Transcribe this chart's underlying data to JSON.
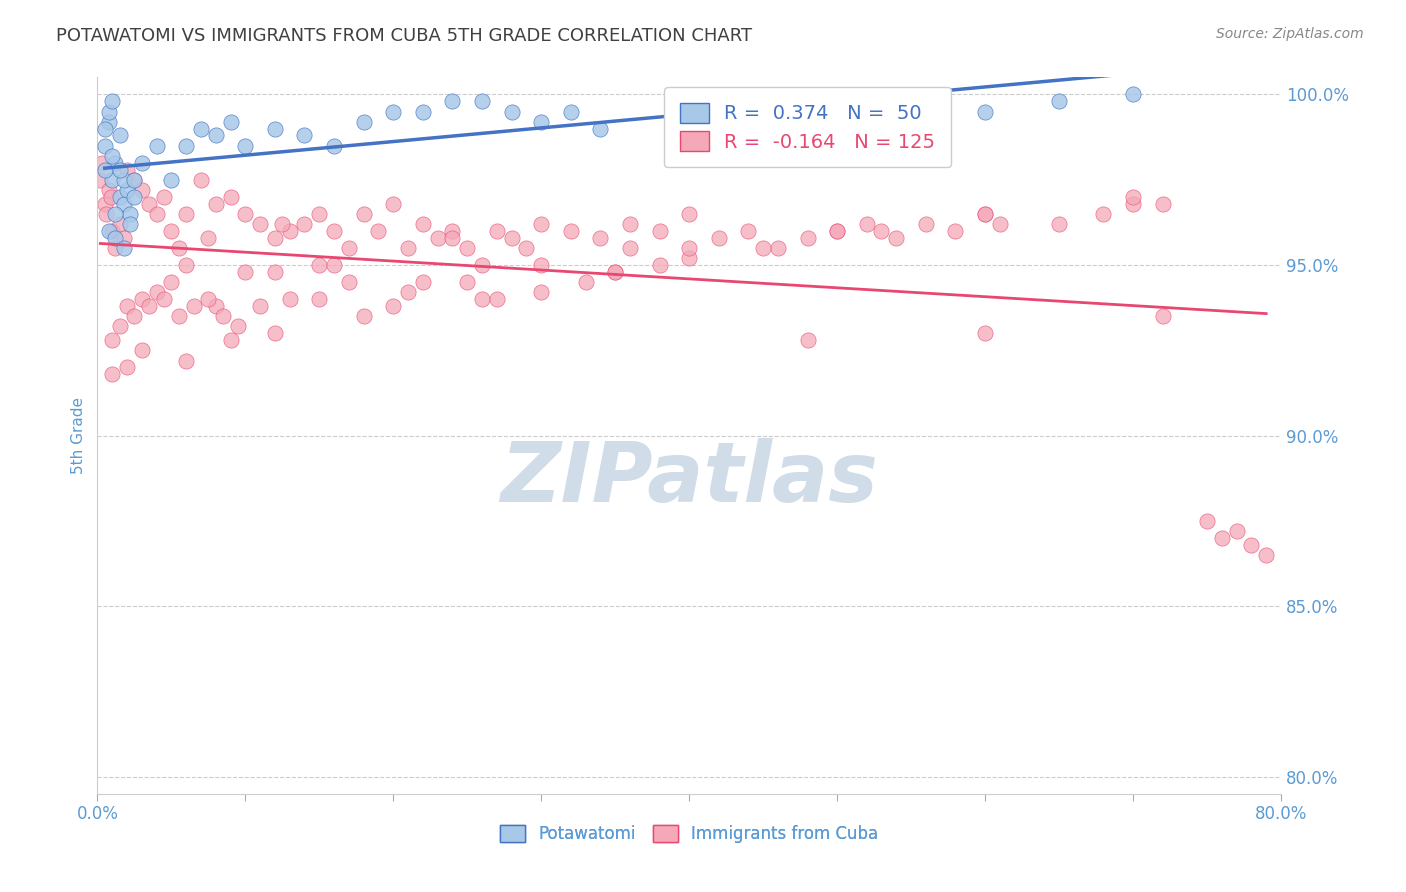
{
  "title": "POTAWATOMI VS IMMIGRANTS FROM CUBA 5TH GRADE CORRELATION CHART",
  "source": "Source: ZipAtlas.com",
  "ylabel": "5th Grade",
  "xlim": [
    0.0,
    0.8
  ],
  "ylim": [
    0.795,
    1.005
  ],
  "yticks": [
    0.8,
    0.85,
    0.9,
    0.95,
    1.0
  ],
  "ytick_labels": [
    "80.0%",
    "85.0%",
    "90.0%",
    "95.0%",
    "100.0%"
  ],
  "blue_R": 0.374,
  "blue_N": 50,
  "pink_R": -0.164,
  "pink_N": 125,
  "blue_color": "#a8c8e8",
  "pink_color": "#f4a8b8",
  "blue_line_color": "#4472c4",
  "pink_line_color": "#e84870",
  "title_color": "#404040",
  "axis_color": "#5b9bd5",
  "watermark_color": "#d0dce8",
  "blue_scatter_x": [
    0.005,
    0.008,
    0.01,
    0.012,
    0.015,
    0.018,
    0.02,
    0.022,
    0.005,
    0.008,
    0.012,
    0.015,
    0.018,
    0.022,
    0.025,
    0.01,
    0.012,
    0.015,
    0.018,
    0.005,
    0.008,
    0.01,
    0.025,
    0.03,
    0.04,
    0.05,
    0.06,
    0.07,
    0.08,
    0.09,
    0.1,
    0.12,
    0.14,
    0.16,
    0.18,
    0.2,
    0.22,
    0.24,
    0.26,
    0.28,
    0.3,
    0.32,
    0.34,
    0.4,
    0.45,
    0.5,
    0.55,
    0.6,
    0.65,
    0.7
  ],
  "blue_scatter_y": [
    0.985,
    0.992,
    0.975,
    0.98,
    0.97,
    0.968,
    0.972,
    0.965,
    0.978,
    0.96,
    0.965,
    0.988,
    0.975,
    0.962,
    0.97,
    0.982,
    0.958,
    0.978,
    0.955,
    0.99,
    0.995,
    0.998,
    0.975,
    0.98,
    0.985,
    0.975,
    0.985,
    0.99,
    0.988,
    0.992,
    0.985,
    0.99,
    0.988,
    0.985,
    0.992,
    0.995,
    0.995,
    0.998,
    0.998,
    0.995,
    0.992,
    0.995,
    0.99,
    0.995,
    0.998,
    0.998,
    0.995,
    0.995,
    0.998,
    1.0
  ],
  "pink_scatter_x": [
    0.002,
    0.005,
    0.008,
    0.01,
    0.003,
    0.006,
    0.009,
    0.012,
    0.015,
    0.018,
    0.02,
    0.025,
    0.03,
    0.035,
    0.04,
    0.045,
    0.05,
    0.055,
    0.06,
    0.07,
    0.08,
    0.09,
    0.1,
    0.11,
    0.12,
    0.13,
    0.14,
    0.15,
    0.16,
    0.17,
    0.18,
    0.19,
    0.2,
    0.21,
    0.22,
    0.23,
    0.24,
    0.25,
    0.26,
    0.27,
    0.28,
    0.29,
    0.3,
    0.32,
    0.34,
    0.36,
    0.38,
    0.4,
    0.42,
    0.44,
    0.46,
    0.48,
    0.5,
    0.52,
    0.54,
    0.56,
    0.58,
    0.6,
    0.65,
    0.7,
    0.15,
    0.2,
    0.25,
    0.3,
    0.35,
    0.4,
    0.05,
    0.1,
    0.15,
    0.02,
    0.03,
    0.04,
    0.06,
    0.08,
    0.12,
    0.16,
    0.22,
    0.26,
    0.3,
    0.35,
    0.4,
    0.5,
    0.6,
    0.7,
    0.01,
    0.015,
    0.025,
    0.035,
    0.045,
    0.055,
    0.065,
    0.075,
    0.085,
    0.095,
    0.11,
    0.13,
    0.17,
    0.21,
    0.27,
    0.33,
    0.38,
    0.45,
    0.53,
    0.61,
    0.68,
    0.72,
    0.75,
    0.76,
    0.77,
    0.78,
    0.79,
    0.01,
    0.02,
    0.03,
    0.06,
    0.09,
    0.12,
    0.18,
    0.24,
    0.36,
    0.48,
    0.6,
    0.72,
    0.075,
    0.125
  ],
  "pink_scatter_y": [
    0.975,
    0.968,
    0.972,
    0.96,
    0.98,
    0.965,
    0.97,
    0.955,
    0.962,
    0.958,
    0.978,
    0.975,
    0.972,
    0.968,
    0.965,
    0.97,
    0.96,
    0.955,
    0.965,
    0.975,
    0.968,
    0.97,
    0.965,
    0.962,
    0.958,
    0.96,
    0.962,
    0.965,
    0.96,
    0.955,
    0.965,
    0.96,
    0.968,
    0.955,
    0.962,
    0.958,
    0.96,
    0.955,
    0.95,
    0.96,
    0.958,
    0.955,
    0.962,
    0.96,
    0.958,
    0.955,
    0.96,
    0.965,
    0.958,
    0.96,
    0.955,
    0.958,
    0.96,
    0.962,
    0.958,
    0.962,
    0.96,
    0.965,
    0.962,
    0.968,
    0.94,
    0.938,
    0.945,
    0.942,
    0.948,
    0.952,
    0.945,
    0.948,
    0.95,
    0.938,
    0.94,
    0.942,
    0.95,
    0.938,
    0.948,
    0.95,
    0.945,
    0.94,
    0.95,
    0.948,
    0.955,
    0.96,
    0.965,
    0.97,
    0.928,
    0.932,
    0.935,
    0.938,
    0.94,
    0.935,
    0.938,
    0.94,
    0.935,
    0.932,
    0.938,
    0.94,
    0.945,
    0.942,
    0.94,
    0.945,
    0.95,
    0.955,
    0.96,
    0.962,
    0.965,
    0.968,
    0.875,
    0.87,
    0.872,
    0.868,
    0.865,
    0.918,
    0.92,
    0.925,
    0.922,
    0.928,
    0.93,
    0.935,
    0.958,
    0.962,
    0.928,
    0.93,
    0.935,
    0.958,
    0.962
  ]
}
